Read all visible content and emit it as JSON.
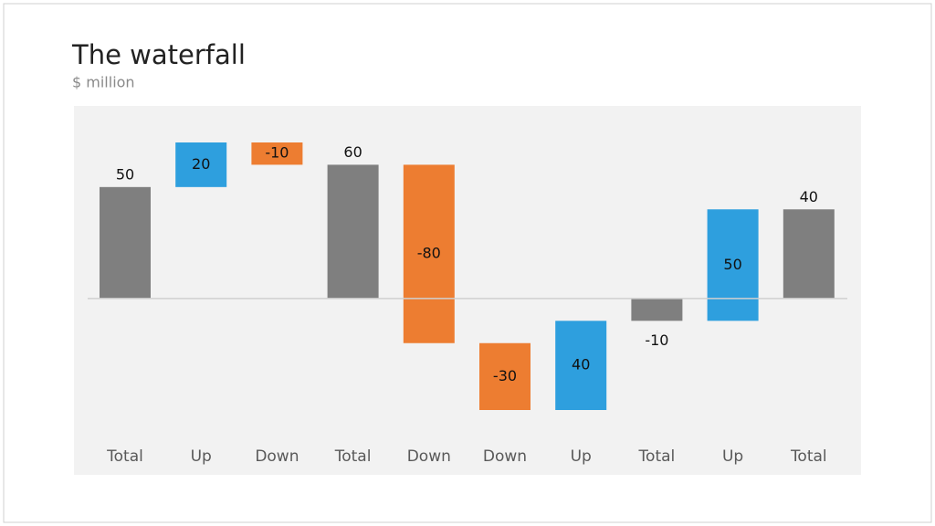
{
  "chart_data": {
    "type": "waterfall",
    "title": "The waterfall",
    "subtitle": "$ million",
    "categories": [
      "Total",
      "Up",
      "Down",
      "Total",
      "Down",
      "Down",
      "Up",
      "Total",
      "Up",
      "Total"
    ],
    "values": [
      50,
      20,
      -10,
      60,
      -80,
      -30,
      40,
      -10,
      50,
      40
    ],
    "is_total": [
      true,
      false,
      false,
      true,
      false,
      false,
      false,
      true,
      false,
      true
    ],
    "total_color": "#7f7f7f",
    "up_color": "#2e9fde",
    "down_color": "#ed7d31"
  }
}
